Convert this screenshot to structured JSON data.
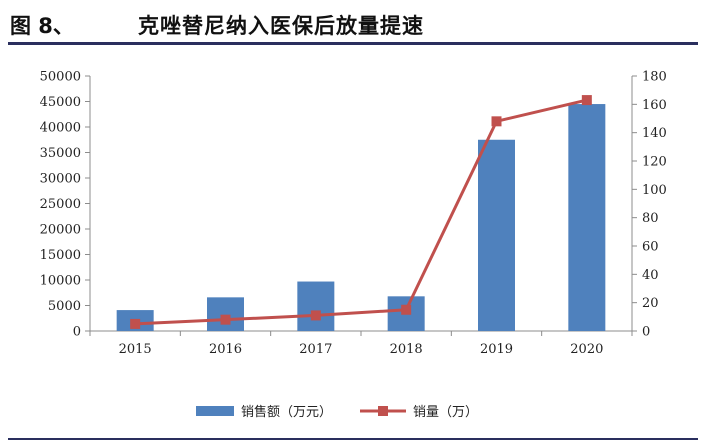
{
  "header": {
    "figure_label": "图 8、",
    "title": "克唑替尼纳入医保后放量提速"
  },
  "colors": {
    "bar": "#4f81bd",
    "line": "#c0504d",
    "axis": "#8c8c8c",
    "rule": "#2a2f5e"
  },
  "chart_data": {
    "type": "bar",
    "categories": [
      "2015",
      "2016",
      "2017",
      "2018",
      "2019",
      "2020"
    ],
    "series": [
      {
        "name": "销售额（万元）",
        "type": "bar",
        "axis": "left",
        "values": [
          4100,
          6600,
          9700,
          6800,
          37500,
          44500
        ]
      },
      {
        "name": "销量（万）",
        "type": "line",
        "axis": "right",
        "values": [
          5,
          8,
          11,
          15,
          148,
          163
        ]
      }
    ],
    "ylim_left": [
      0,
      50000
    ],
    "yticks_left": [
      "0",
      "5000",
      "10000",
      "15000",
      "20000",
      "25000",
      "30000",
      "35000",
      "40000",
      "45000",
      "50000"
    ],
    "ylim_right": [
      0,
      180
    ],
    "yticks_right": [
      "0",
      "20",
      "40",
      "60",
      "80",
      "100",
      "120",
      "140",
      "160",
      "180"
    ],
    "grid": false,
    "legend_position": "bottom"
  }
}
